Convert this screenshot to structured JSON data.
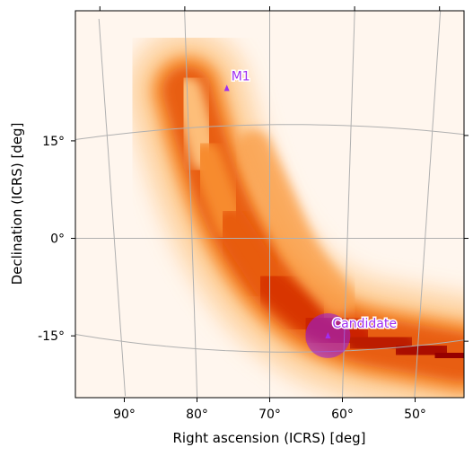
{
  "chart_data": {
    "type": "heatmap",
    "title": "",
    "xlabel": "Right ascension (ICRS) [deg]",
    "ylabel": "Declination (ICRS) [deg]",
    "xlim": [
      95,
      45
    ],
    "ylim": [
      -21,
      30
    ],
    "x_ticks": [
      90,
      80,
      70,
      60,
      50
    ],
    "x_tick_labels": [
      "90°",
      "80°",
      "70°",
      "60°",
      "50°"
    ],
    "y_ticks": [
      15,
      0,
      -15
    ],
    "y_tick_labels": [
      "15°",
      "0°",
      "-15°"
    ],
    "grid": true,
    "colormap": "gist_heat_r",
    "colors": {
      "grid": "#b0b0b0",
      "marker": "#a02ef0",
      "region": "#9b1fd8"
    },
    "density_band": {
      "description_free": true,
      "path_ra": [
        80,
        78,
        75,
        70,
        64,
        58,
        52,
        47,
        44
      ],
      "path_dec": [
        20,
        11,
        2,
        -6,
        -11,
        -13.5,
        -15,
        -16.5,
        -17.5
      ],
      "intensity": [
        0.25,
        0.45,
        0.6,
        0.75,
        0.82,
        0.86,
        0.9,
        0.95,
        1.0
      ]
    },
    "markers": [
      {
        "label": "M1",
        "ra": 75.2,
        "dec": 20.0
      },
      {
        "label": "Candidate",
        "ra": 62.2,
        "dec": -12.9,
        "region_radius_deg": 3.0
      }
    ]
  }
}
